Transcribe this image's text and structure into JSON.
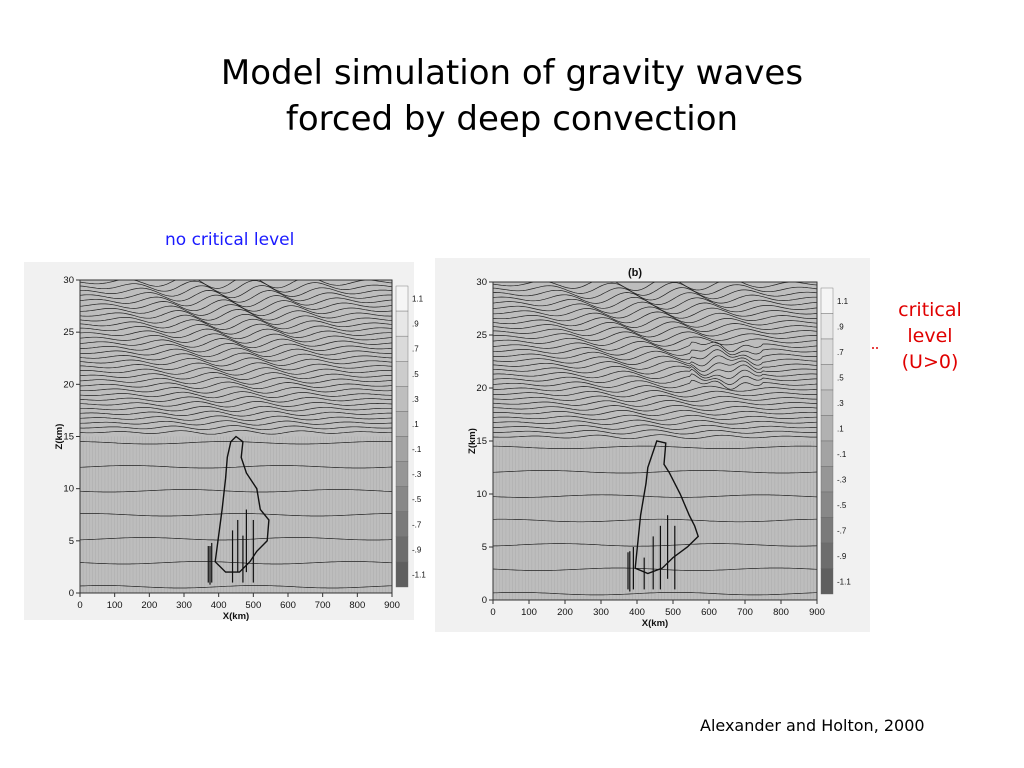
{
  "title": {
    "line1": "Model simulation of gravity waves",
    "line2": "forced by deep convection"
  },
  "annotations": {
    "no_critical": "no critical level",
    "critical": [
      "critical",
      "level",
      "(U>0)"
    ]
  },
  "colors": {
    "blue_label": "#1a1aff",
    "red_label": "#e00000",
    "plot_gray": "#b8b8b8"
  },
  "panels": [
    {
      "id": "a",
      "panel_label": "",
      "xlabel": "X(km)",
      "ylabel": "Z(km)",
      "x_ticks": [
        "0",
        "100",
        "200",
        "300",
        "400",
        "500",
        "600",
        "700",
        "800",
        "900"
      ],
      "y_ticks": [
        "0",
        "5",
        "10",
        "15",
        "20",
        "25",
        "30"
      ],
      "colorbar_ticks": [
        "1.1",
        ".9",
        ".7",
        ".5",
        ".3",
        ".1",
        "-.1",
        "-.3",
        "-.5",
        "-.7",
        "-.9",
        "-1.1"
      ],
      "critical_level": false
    },
    {
      "id": "b",
      "panel_label": "(b)",
      "xlabel": "X(km)",
      "ylabel": "Z(km)",
      "x_ticks": [
        "0",
        "100",
        "200",
        "300",
        "400",
        "500",
        "600",
        "700",
        "800",
        "900"
      ],
      "y_ticks": [
        "0",
        "5",
        "10",
        "15",
        "20",
        "25",
        "30"
      ],
      "colorbar_ticks": [
        "1.1",
        ".9",
        ".7",
        ".5",
        ".3",
        ".1",
        "-.1",
        "-.3",
        "-.5",
        "-.7",
        "-.9",
        "-1.1"
      ],
      "critical_level": true
    }
  ],
  "citation": "Alexander and Holton, 2000"
}
